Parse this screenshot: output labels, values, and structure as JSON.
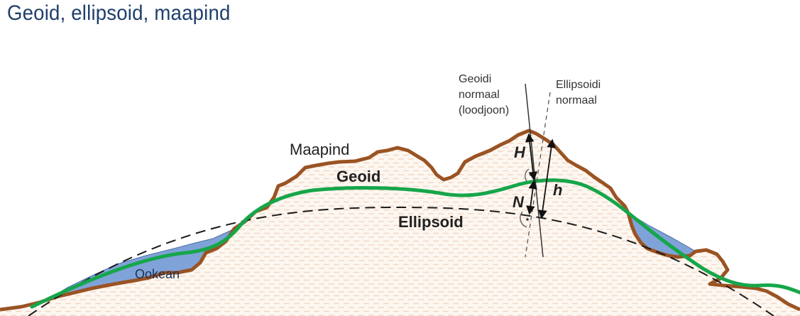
{
  "title": "Geoid, ellipsoid, maapind",
  "labels": {
    "surface": "Maapind",
    "geoid": "Geoid",
    "ellipsoid": "Ellipsoid",
    "ocean": "Ookean",
    "geoid_normal_1": "Geoidi",
    "geoid_normal_2": "normaal",
    "geoid_normal_3": "(loodjoon)",
    "ellipsoid_normal_1": "Ellipsoidi",
    "ellipsoid_normal_2": "normaal",
    "H": "H",
    "N": "N",
    "h": "h"
  },
  "colors": {
    "title": "#1f3f6b",
    "terrain_outline": "#9a5323",
    "terrain_fill": "#fbf0e6",
    "terrain_hatch": "#e6b594",
    "geoid": "#16a64a",
    "ellipsoid": "#1a1a1a",
    "ocean": "#7fa3d8"
  }
}
